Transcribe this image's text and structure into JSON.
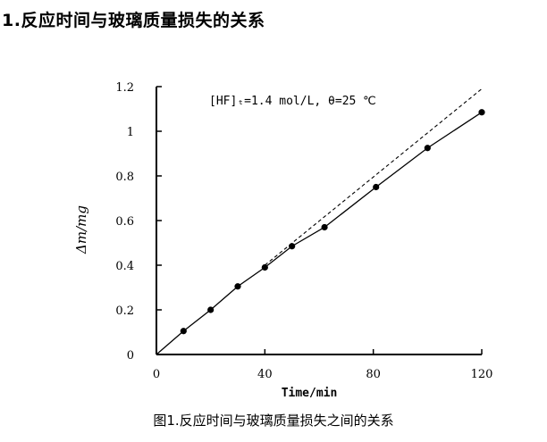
{
  "heading": "1.反应时间与玻璃质量损失的关系",
  "caption": "图1.反应时间与玻璃质量损失之间的关系",
  "chart_data": {
    "type": "line",
    "title": "",
    "annotation": "[HF]ₜ=1.4 mol/L, θ=25 ℃",
    "xlabel": "Time/min",
    "ylabel": "Δm/mg",
    "xlim": [
      0,
      120
    ],
    "ylim": [
      0,
      1.2
    ],
    "x_ticks": [
      "0",
      "40",
      "80",
      "120"
    ],
    "y_ticks": [
      "0",
      "0.2",
      "0.4",
      "0.6",
      "0.8",
      "1",
      "1.2"
    ],
    "grid": false,
    "legend": "none",
    "series": [
      {
        "style": "solid-with-markers",
        "points": [
          {
            "x": 0,
            "y": 0
          },
          {
            "x": 10,
            "y": 0.105
          },
          {
            "x": 20,
            "y": 0.2
          },
          {
            "x": 30,
            "y": 0.305
          },
          {
            "x": 40,
            "y": 0.39
          },
          {
            "x": 50,
            "y": 0.485
          },
          {
            "x": 62,
            "y": 0.57
          },
          {
            "x": 81,
            "y": 0.75
          },
          {
            "x": 100,
            "y": 0.925
          },
          {
            "x": 120,
            "y": 1.085
          }
        ]
      },
      {
        "style": "dashed-line",
        "points": [
          {
            "x": 40,
            "y": 0.4
          },
          {
            "x": 120,
            "y": 1.19
          }
        ]
      }
    ]
  }
}
